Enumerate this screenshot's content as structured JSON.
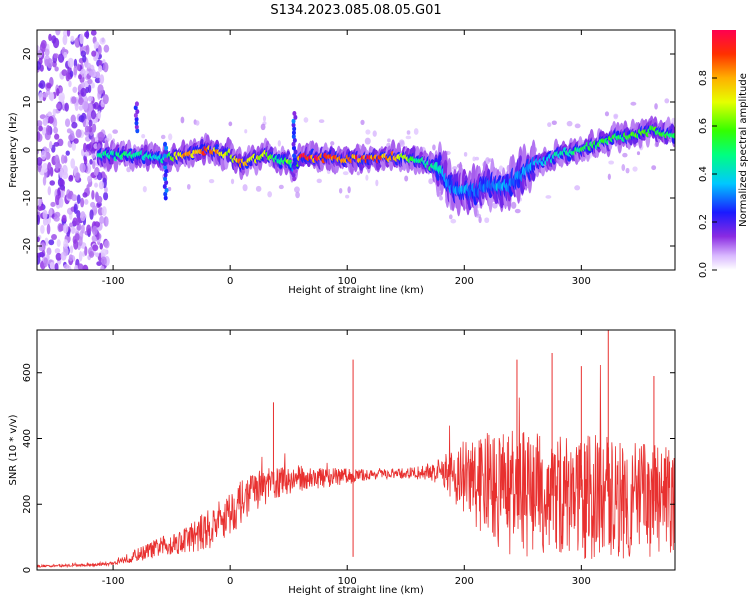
{
  "title": "S134.2023.085.08.05.G01",
  "chart_data": [
    {
      "type": "heatmap",
      "xlabel": "Height of straight line (km)",
      "ylabel": "Frequency (Hz)",
      "xlim": [
        -165,
        380
      ],
      "ylim": [
        -25,
        25
      ],
      "x_ticks": [
        -100,
        0,
        100,
        200,
        300
      ],
      "y_ticks": [
        -20,
        -10,
        0,
        10,
        20
      ],
      "colorbar": {
        "label": "Normalized spectral amplitude",
        "range": [
          0.0,
          1.0
        ],
        "ticks": [
          0.0,
          0.2,
          0.4,
          0.6,
          0.8
        ]
      },
      "ridge": {
        "x": [
          -115,
          -100,
          -80,
          -60,
          -40,
          -20,
          0,
          10,
          20,
          30,
          40,
          50,
          55,
          60,
          80,
          100,
          120,
          140,
          160,
          180,
          190,
          200,
          210,
          220,
          230,
          240,
          260,
          280,
          300,
          320,
          340,
          360,
          380
        ],
        "freq": [
          -1.5,
          -1,
          -1,
          -2,
          -1,
          0,
          -1,
          -3,
          -2,
          -1,
          -2,
          -2,
          -4,
          -1.5,
          -1.5,
          -2,
          -2,
          -1.5,
          -2,
          -4,
          -8,
          -8,
          -9,
          -7,
          -8,
          -7,
          -3,
          -1,
          0,
          2,
          3,
          4,
          3
        ],
        "amplitude": [
          0.45,
          0.45,
          0.5,
          0.4,
          0.8,
          0.85,
          0.7,
          0.8,
          0.75,
          0.7,
          0.5,
          0.6,
          0.35,
          0.9,
          0.95,
          0.9,
          0.9,
          0.8,
          0.5,
          0.45,
          0.3,
          0.35,
          0.3,
          0.3,
          0.35,
          0.3,
          0.35,
          0.45,
          0.5,
          0.55,
          0.55,
          0.6,
          0.55
        ]
      },
      "noise_region_x": [
        -165,
        -105
      ]
    },
    {
      "type": "line",
      "xlabel": "Height of straight line (km)",
      "ylabel": "SNR (10 * v/v)",
      "xlim": [
        -165,
        380
      ],
      "ylim": [
        0,
        730
      ],
      "x_ticks": [
        -100,
        0,
        100,
        200,
        300
      ],
      "y_ticks": [
        0,
        200,
        400,
        600
      ],
      "color": "#e8302f",
      "envelope": {
        "x": [
          -165,
          -120,
          -100,
          -80,
          -60,
          -40,
          -20,
          0,
          20,
          40,
          60,
          80,
          100,
          120,
          140,
          160,
          180,
          200,
          220,
          240,
          260,
          280,
          300,
          320,
          340,
          360,
          380
        ],
        "mean": [
          12,
          15,
          20,
          45,
          70,
          90,
          120,
          175,
          240,
          265,
          280,
          280,
          285,
          290,
          292,
          295,
          300,
          280,
          250,
          235,
          230,
          225,
          220,
          225,
          215,
          210,
          205
        ],
        "spread": [
          4,
          4,
          6,
          20,
          30,
          40,
          60,
          70,
          60,
          50,
          40,
          30,
          25,
          15,
          15,
          20,
          40,
          120,
          170,
          190,
          190,
          190,
          190,
          190,
          180,
          180,
          170
        ]
      },
      "spikes": [
        {
          "x": 37,
          "y": 510
        },
        {
          "x": 105,
          "y": 640
        },
        {
          "x": 105,
          "y": 40
        },
        {
          "x": 245,
          "y": 640
        },
        {
          "x": 275,
          "y": 660
        },
        {
          "x": 300,
          "y": 620
        },
        {
          "x": 323,
          "y": 730
        },
        {
          "x": 362,
          "y": 590
        }
      ]
    }
  ]
}
